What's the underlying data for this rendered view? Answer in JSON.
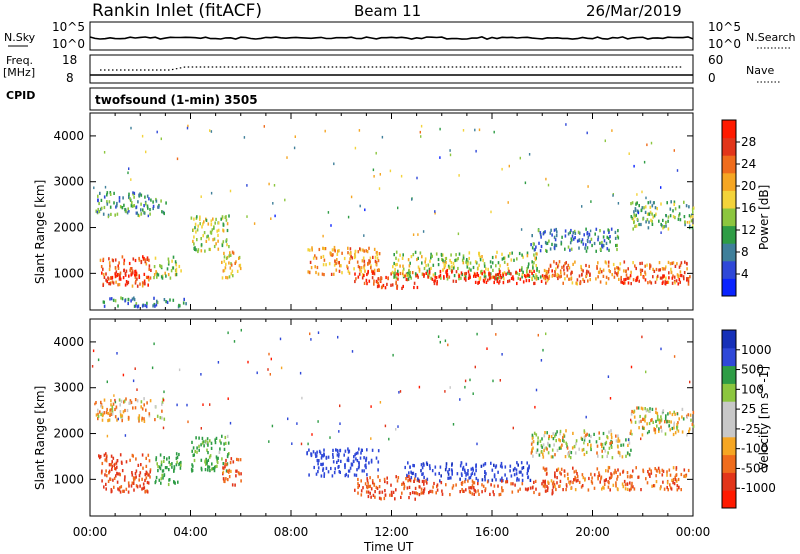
{
  "header": {
    "station": "Rankin Inlet (fitACF)",
    "beam": "Beam 11",
    "date": "26/Mar/2019"
  },
  "noise_panel": {
    "left_label": "N.Sky",
    "left_ticks": [
      "10^5",
      "10^0"
    ],
    "right_ticks": [
      "10^5",
      "10^0"
    ],
    "right_label": "N.Search"
  },
  "freq_panel": {
    "left_label_1": "Freq.",
    "left_label_2": "[MHz]",
    "left_ticks": [
      "18",
      "8"
    ],
    "right_ticks": [
      "60",
      "0"
    ],
    "right_label": "Nave"
  },
  "cpid": {
    "label": "CPID",
    "text": "twofsound (1-min) 3505"
  },
  "axes": {
    "xlabel": "Time UT",
    "ylabel": "Slant Range [km]"
  },
  "colors": {
    "power_bar": [
      "#0a24ff",
      "#2f48d8",
      "#3f7f9a",
      "#2e9c45",
      "#8cc63f",
      "#f3d33a",
      "#f5a623",
      "#ef6c1c",
      "#e2351a",
      "#ff1a00"
    ],
    "velocity_bar": [
      "#ff1a00",
      "#e2351a",
      "#ef6c1c",
      "#f5a623",
      "#c8c8c8",
      "#c8c8c8",
      "#8cc63f",
      "#2e9c45",
      "#2f48d8",
      "#1630b8"
    ]
  },
  "chart_data": [
    {
      "type": "heatmap",
      "name": "power",
      "xlabel": "Time UT",
      "ylabel": "Slant Range [km]",
      "x_ticks": [
        "00:00",
        "04:00",
        "08:00",
        "12:00",
        "16:00",
        "20:00",
        "00:00"
      ],
      "y_ticks": [
        1000,
        2000,
        3000,
        4000
      ],
      "ylim": [
        200,
        4500
      ],
      "xlim_hours": [
        0,
        24
      ],
      "colorbar_label": "Power [dB]",
      "colorbar_ticks": [
        "28",
        "24",
        "20",
        "16",
        "12",
        "8",
        "4"
      ],
      "colorbar_range": [
        0,
        30
      ],
      "clusters": [
        {
          "t0": 0.3,
          "t1": 2.4,
          "r0": 750,
          "r1": 1400,
          "v": 24
        },
        {
          "t0": 0.4,
          "t1": 2.0,
          "r0": 900,
          "r1": 1100,
          "v": 28
        },
        {
          "t0": 2.5,
          "t1": 3.6,
          "r0": 900,
          "r1": 1400,
          "v": 14
        },
        {
          "t0": 0.5,
          "t1": 3.8,
          "r0": 300,
          "r1": 500,
          "v": 8
        },
        {
          "t0": 0.2,
          "t1": 3.0,
          "r0": 2300,
          "r1": 2800,
          "v": 10
        },
        {
          "t0": 4.0,
          "t1": 5.5,
          "r0": 1500,
          "r1": 2300,
          "v": 14
        },
        {
          "t0": 5.2,
          "t1": 6.0,
          "r0": 900,
          "r1": 1500,
          "v": 18
        },
        {
          "t0": 8.6,
          "t1": 11.5,
          "r0": 1000,
          "r1": 1600,
          "v": 20
        },
        {
          "t0": 10.5,
          "t1": 13.0,
          "r0": 700,
          "r1": 1100,
          "v": 26
        },
        {
          "t0": 12.0,
          "t1": 18.0,
          "r0": 900,
          "r1": 1500,
          "v": 14
        },
        {
          "t0": 13.0,
          "t1": 18.5,
          "r0": 800,
          "r1": 1100,
          "v": 28
        },
        {
          "t0": 17.5,
          "t1": 21.0,
          "r0": 1500,
          "r1": 2000,
          "v": 8
        },
        {
          "t0": 18.0,
          "t1": 23.8,
          "r0": 800,
          "r1": 1300,
          "v": 22
        },
        {
          "t0": 21.0,
          "t1": 23.9,
          "r0": 800,
          "r1": 1000,
          "v": 28
        },
        {
          "t0": 21.5,
          "t1": 24.0,
          "r0": 2000,
          "r1": 2600,
          "v": 12
        }
      ]
    },
    {
      "type": "heatmap",
      "name": "velocity",
      "xlabel": "Time UT",
      "ylabel": "Slant Range [km]",
      "x_ticks": [
        "00:00",
        "04:00",
        "08:00",
        "12:00",
        "16:00",
        "20:00",
        "00:00"
      ],
      "y_ticks": [
        1000,
        2000,
        3000,
        4000
      ],
      "ylim": [
        200,
        4500
      ],
      "xlim_hours": [
        0,
        24
      ],
      "colorbar_label": "Velocity [m s^-1]",
      "colorbar_ticks": [
        "1000",
        "500",
        "100",
        "25",
        "-25",
        "-100",
        "-500",
        "-1000"
      ],
      "clusters": [
        {
          "t0": 0.3,
          "t1": 2.4,
          "r0": 750,
          "r1": 1600,
          "v": -300
        },
        {
          "t0": 2.5,
          "t1": 3.6,
          "r0": 900,
          "r1": 1600,
          "v": 200
        },
        {
          "t0": 0.2,
          "t1": 3.0,
          "r0": 2300,
          "r1": 2800,
          "v": -60
        },
        {
          "t0": 4.0,
          "t1": 5.5,
          "r0": 1200,
          "r1": 2000,
          "v": 150
        },
        {
          "t0": 5.2,
          "t1": 6.0,
          "r0": 900,
          "r1": 1500,
          "v": -200
        },
        {
          "t0": 8.6,
          "t1": 11.5,
          "r0": 1100,
          "r1": 1700,
          "v": 700
        },
        {
          "t0": 10.5,
          "t1": 13.0,
          "r0": 600,
          "r1": 1100,
          "v": -300
        },
        {
          "t0": 12.5,
          "t1": 17.5,
          "r0": 1000,
          "r1": 1400,
          "v": 900
        },
        {
          "t0": 13.0,
          "t1": 18.5,
          "r0": 700,
          "r1": 1000,
          "v": -250
        },
        {
          "t0": 17.5,
          "t1": 21.5,
          "r0": 1500,
          "r1": 2100,
          "v": 0
        },
        {
          "t0": 18.0,
          "t1": 23.8,
          "r0": 800,
          "r1": 1300,
          "v": -200
        },
        {
          "t0": 21.5,
          "t1": 24.0,
          "r0": 2000,
          "r1": 2600,
          "v": 0
        }
      ]
    }
  ]
}
